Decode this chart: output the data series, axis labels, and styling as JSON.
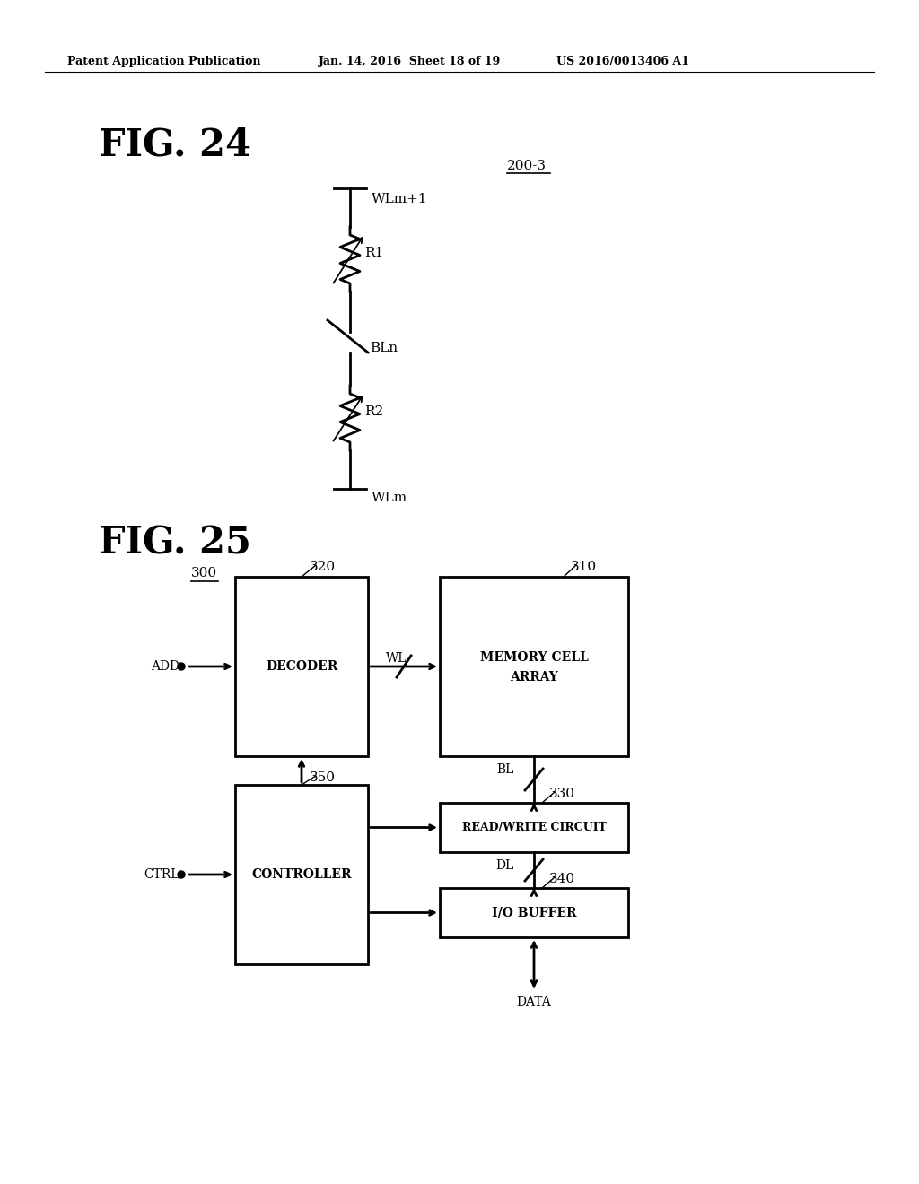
{
  "bg_color": "#ffffff",
  "header_left": "Patent Application Publication",
  "header_mid": "Jan. 14, 2016  Sheet 18 of 19",
  "header_right": "US 2016/0013406 A1",
  "fig24_label": "FIG. 24",
  "fig25_label": "FIG. 25",
  "ref_200_3": "200-3",
  "ref_300": "300",
  "ref_310": "310",
  "ref_320": "320",
  "ref_330": "330",
  "ref_340": "340",
  "ref_350": "350"
}
